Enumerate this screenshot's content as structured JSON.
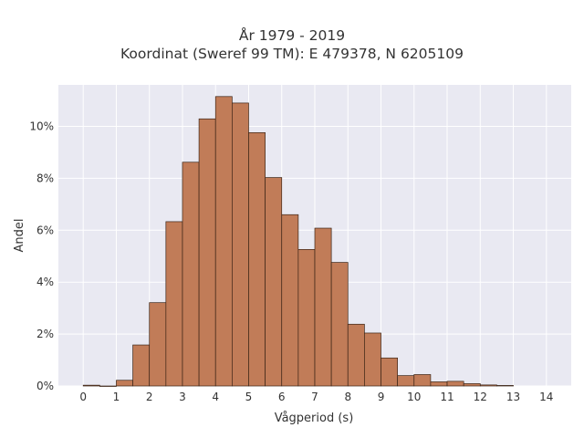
{
  "chart_data": {
    "type": "bar",
    "title": "År 1979 - 2019",
    "subtitle": "Koordinat (Sweref 99 TM): E 479378, N 6205109",
    "xlabel": "Vågperiod (s)",
    "ylabel": "Andel",
    "xlim": [
      -0.75,
      14.75
    ],
    "ylim": [
      0,
      11.6
    ],
    "x_ticks": [
      0,
      1,
      2,
      3,
      4,
      5,
      6,
      7,
      8,
      9,
      10,
      11,
      12,
      13,
      14
    ],
    "y_ticks": [
      0,
      2,
      4,
      6,
      8,
      10
    ],
    "y_tick_labels": [
      "0%",
      "2%",
      "4%",
      "6%",
      "8%",
      "10%"
    ],
    "bin_width": 0.5,
    "bins": [
      {
        "x0": 0.0,
        "x1": 0.5,
        "value": 0.03
      },
      {
        "x0": 0.5,
        "x1": 1.0,
        "value": 0.0
      },
      {
        "x0": 1.0,
        "x1": 1.5,
        "value": 0.22
      },
      {
        "x0": 1.5,
        "x1": 2.0,
        "value": 1.58
      },
      {
        "x0": 2.0,
        "x1": 2.5,
        "value": 3.21
      },
      {
        "x0": 2.5,
        "x1": 3.0,
        "value": 6.33
      },
      {
        "x0": 3.0,
        "x1": 3.5,
        "value": 8.62
      },
      {
        "x0": 3.5,
        "x1": 4.0,
        "value": 10.29
      },
      {
        "x0": 4.0,
        "x1": 4.5,
        "value": 11.15
      },
      {
        "x0": 4.5,
        "x1": 5.0,
        "value": 10.9
      },
      {
        "x0": 5.0,
        "x1": 5.5,
        "value": 9.76
      },
      {
        "x0": 5.5,
        "x1": 6.0,
        "value": 8.03
      },
      {
        "x0": 6.0,
        "x1": 6.5,
        "value": 6.6
      },
      {
        "x0": 6.5,
        "x1": 7.0,
        "value": 5.26
      },
      {
        "x0": 7.0,
        "x1": 7.5,
        "value": 6.08
      },
      {
        "x0": 7.5,
        "x1": 8.0,
        "value": 4.76
      },
      {
        "x0": 8.0,
        "x1": 8.5,
        "value": 2.38
      },
      {
        "x0": 8.5,
        "x1": 9.0,
        "value": 2.04
      },
      {
        "x0": 9.0,
        "x1": 9.5,
        "value": 1.08
      },
      {
        "x0": 9.5,
        "x1": 10.0,
        "value": 0.4
      },
      {
        "x0": 10.0,
        "x1": 10.5,
        "value": 0.44
      },
      {
        "x0": 10.5,
        "x1": 11.0,
        "value": 0.16
      },
      {
        "x0": 11.0,
        "x1": 11.5,
        "value": 0.18
      },
      {
        "x0": 11.5,
        "x1": 12.0,
        "value": 0.09
      },
      {
        "x0": 12.0,
        "x1": 12.5,
        "value": 0.04
      },
      {
        "x0": 12.5,
        "x1": 13.0,
        "value": 0.02
      }
    ],
    "grid": true,
    "bar_color": "#c17c58",
    "bar_edge_color": "#3b2416",
    "plot_background": "#e9e9f2",
    "grid_color": "#ffffff"
  }
}
